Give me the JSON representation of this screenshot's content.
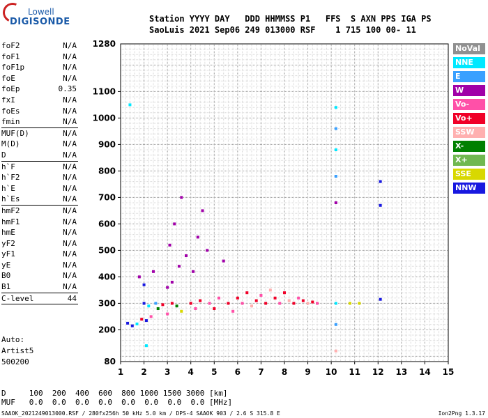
{
  "logo": {
    "brand": "Lowell",
    "product": "DIGISONDE"
  },
  "header": {
    "line1": "Station YYYY DAY   DDD HHMMSS P1   FFS  S AXN PPS IGA PS",
    "line2": "SaoLuis 2021 Sep06 249 013000 RSF    1 715 100 00- 11"
  },
  "params_group1": [
    {
      "name": "foF2",
      "value": "N/A"
    },
    {
      "name": "foF1",
      "value": "N/A"
    },
    {
      "name": "foF1p",
      "value": "N/A"
    },
    {
      "name": "foE",
      "value": "N/A"
    },
    {
      "name": "foEp",
      "value": "0.35"
    },
    {
      "name": "fxI",
      "value": "N/A"
    },
    {
      "name": "foEs",
      "value": "N/A"
    },
    {
      "name": "fmin",
      "value": "N/A"
    }
  ],
  "params_group2": [
    {
      "name": "MUF(D)",
      "value": "N/A"
    },
    {
      "name": "M(D)",
      "value": "N/A"
    },
    {
      "name": "D",
      "value": "N/A"
    }
  ],
  "params_group3": [
    {
      "name": "h`F",
      "value": "N/A"
    },
    {
      "name": "h`F2",
      "value": "N/A"
    },
    {
      "name": "h`E",
      "value": "N/A"
    },
    {
      "name": "h`Es",
      "value": "N/A"
    }
  ],
  "params_group4": [
    {
      "name": "hmF2",
      "value": "N/A"
    },
    {
      "name": "hmF1",
      "value": "N/A"
    },
    {
      "name": "hmE",
      "value": "N/A"
    },
    {
      "name": "yF2",
      "value": "N/A"
    },
    {
      "name": "yF1",
      "value": "N/A"
    },
    {
      "name": "yE",
      "value": "N/A"
    },
    {
      "name": "B0",
      "value": "N/A"
    },
    {
      "name": "B1",
      "value": "N/A"
    }
  ],
  "params_group5": [
    {
      "name": "C-level",
      "value": "44"
    }
  ],
  "auto": {
    "line1": "Auto:",
    "line2": "Artist5",
    "line3": "500200"
  },
  "bottom": {
    "d_line": "D     100  200  400  600  800 1000 1500 3000 [km]",
    "muf_line": "MUF   0.0  0.0  0.0  0.0  0.0  0.0  0.0  0.0 [MHz]"
  },
  "footer": {
    "left": "SAAOK_2021249013000.RSF / 280fx256h 50 kHz 5.0 km / DPS-4 SAAOK 903 / 2.6 S 315.8 E",
    "right": "Ion2Png 1.3.17"
  },
  "legend": [
    {
      "label": "NoVal",
      "color": "#909090"
    },
    {
      "label": "NNE",
      "color": "#00e8ff"
    },
    {
      "label": "E",
      "color": "#3aa0ff"
    },
    {
      "label": "W",
      "color": "#a000a8"
    },
    {
      "label": "Vo-",
      "color": "#ff50a8"
    },
    {
      "label": "Vo+",
      "color": "#f00028"
    },
    {
      "label": "SSW",
      "color": "#ffb0b0"
    },
    {
      "label": "X-",
      "color": "#008000"
    },
    {
      "label": "X+",
      "color": "#70b850"
    },
    {
      "label": "SSE",
      "color": "#d8d800"
    },
    {
      "label": "NNW",
      "color": "#1818e0"
    }
  ],
  "chart_data": {
    "type": "scatter",
    "title": "",
    "xlabel": "",
    "ylabel": "",
    "xlim": [
      1,
      15
    ],
    "ylim": [
      80,
      1280
    ],
    "x_ticks": [
      1,
      2,
      3,
      4,
      5,
      6,
      7,
      8,
      9,
      10,
      11,
      12,
      13,
      14,
      15
    ],
    "y_ticks": [
      200,
      300,
      400,
      500,
      600,
      700,
      800,
      900,
      1000,
      1100
    ],
    "y_tick_labels_extra": [
      80,
      1280
    ],
    "grid": true,
    "points": [
      {
        "x": 1.3,
        "y": 225,
        "c": 10
      },
      {
        "x": 1.5,
        "y": 215,
        "c": 10
      },
      {
        "x": 1.7,
        "y": 222,
        "c": 1
      },
      {
        "x": 1.9,
        "y": 240,
        "c": 5
      },
      {
        "x": 2.1,
        "y": 235,
        "c": 10
      },
      {
        "x": 2.3,
        "y": 250,
        "c": 4
      },
      {
        "x": 2.0,
        "y": 300,
        "c": 10
      },
      {
        "x": 2.2,
        "y": 290,
        "c": 1
      },
      {
        "x": 2.5,
        "y": 300,
        "c": 2
      },
      {
        "x": 2.0,
        "y": 370,
        "c": 10
      },
      {
        "x": 1.8,
        "y": 400,
        "c": 3
      },
      {
        "x": 2.4,
        "y": 420,
        "c": 3
      },
      {
        "x": 2.6,
        "y": 280,
        "c": 7
      },
      {
        "x": 2.8,
        "y": 295,
        "c": 5
      },
      {
        "x": 3.0,
        "y": 260,
        "c": 4
      },
      {
        "x": 3.2,
        "y": 300,
        "c": 5
      },
      {
        "x": 3.4,
        "y": 290,
        "c": 7
      },
      {
        "x": 3.6,
        "y": 270,
        "c": 9
      },
      {
        "x": 3.0,
        "y": 360,
        "c": 3
      },
      {
        "x": 3.2,
        "y": 380,
        "c": 3
      },
      {
        "x": 3.5,
        "y": 440,
        "c": 3
      },
      {
        "x": 3.1,
        "y": 520,
        "c": 3
      },
      {
        "x": 3.3,
        "y": 600,
        "c": 3
      },
      {
        "x": 3.6,
        "y": 700,
        "c": 3
      },
      {
        "x": 3.8,
        "y": 480,
        "c": 3
      },
      {
        "x": 4.0,
        "y": 300,
        "c": 5
      },
      {
        "x": 4.2,
        "y": 280,
        "c": 4
      },
      {
        "x": 4.4,
        "y": 310,
        "c": 5
      },
      {
        "x": 4.1,
        "y": 420,
        "c": 3
      },
      {
        "x": 4.3,
        "y": 550,
        "c": 3
      },
      {
        "x": 4.5,
        "y": 650,
        "c": 3
      },
      {
        "x": 4.7,
        "y": 500,
        "c": 3
      },
      {
        "x": 4.8,
        "y": 300,
        "c": 4
      },
      {
        "x": 5.0,
        "y": 280,
        "c": 5
      },
      {
        "x": 5.2,
        "y": 320,
        "c": 4
      },
      {
        "x": 5.4,
        "y": 460,
        "c": 3
      },
      {
        "x": 5.6,
        "y": 300,
        "c": 5
      },
      {
        "x": 5.8,
        "y": 270,
        "c": 4
      },
      {
        "x": 6.0,
        "y": 320,
        "c": 5
      },
      {
        "x": 6.2,
        "y": 300,
        "c": 4
      },
      {
        "x": 6.4,
        "y": 340,
        "c": 5
      },
      {
        "x": 6.6,
        "y": 290,
        "c": 6
      },
      {
        "x": 6.8,
        "y": 310,
        "c": 5
      },
      {
        "x": 7.0,
        "y": 330,
        "c": 4
      },
      {
        "x": 7.2,
        "y": 300,
        "c": 5
      },
      {
        "x": 7.4,
        "y": 350,
        "c": 6
      },
      {
        "x": 7.6,
        "y": 320,
        "c": 5
      },
      {
        "x": 7.8,
        "y": 300,
        "c": 4
      },
      {
        "x": 8.0,
        "y": 340,
        "c": 5
      },
      {
        "x": 8.2,
        "y": 310,
        "c": 6
      },
      {
        "x": 8.4,
        "y": 300,
        "c": 5
      },
      {
        "x": 8.6,
        "y": 320,
        "c": 4
      },
      {
        "x": 8.8,
        "y": 310,
        "c": 5
      },
      {
        "x": 9.0,
        "y": 300,
        "c": 6
      },
      {
        "x": 9.2,
        "y": 305,
        "c": 5
      },
      {
        "x": 9.4,
        "y": 300,
        "c": 4
      },
      {
        "x": 10.2,
        "y": 1040,
        "c": 1
      },
      {
        "x": 10.2,
        "y": 960,
        "c": 2
      },
      {
        "x": 10.2,
        "y": 880,
        "c": 1
      },
      {
        "x": 10.2,
        "y": 780,
        "c": 2
      },
      {
        "x": 10.2,
        "y": 680,
        "c": 3
      },
      {
        "x": 10.2,
        "y": 300,
        "c": 1
      },
      {
        "x": 10.2,
        "y": 220,
        "c": 2
      },
      {
        "x": 10.2,
        "y": 120,
        "c": 6
      },
      {
        "x": 12.1,
        "y": 760,
        "c": 10
      },
      {
        "x": 12.1,
        "y": 670,
        "c": 10
      },
      {
        "x": 12.1,
        "y": 315,
        "c": 10
      },
      {
        "x": 10.8,
        "y": 300,
        "c": 9
      },
      {
        "x": 11.2,
        "y": 300,
        "c": 9
      },
      {
        "x": 1.4,
        "y": 1050,
        "c": 1
      },
      {
        "x": 2.1,
        "y": 140,
        "c": 1
      }
    ]
  }
}
